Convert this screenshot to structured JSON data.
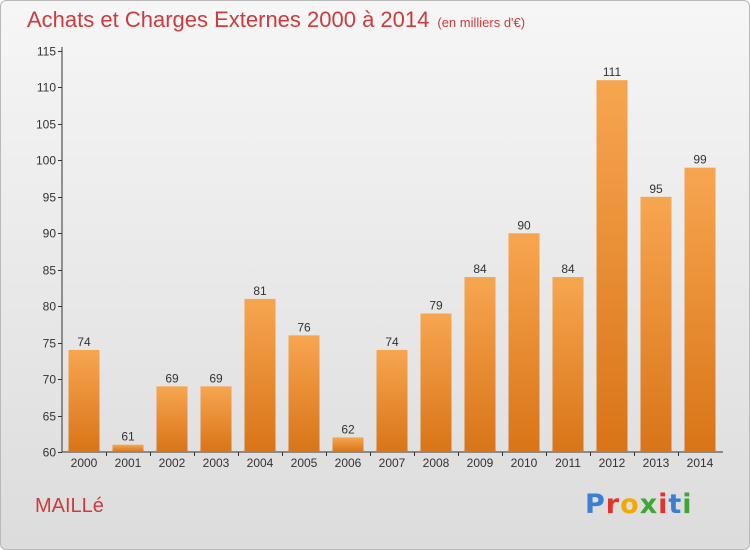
{
  "title": "Achats et Charges Externes 2000 à 2014",
  "unit": "(en milliers d'€)",
  "town": "MAILLé",
  "logo": "Proxiti",
  "colors": {
    "bar_light": "#f7a650",
    "bar_dark": "#d97418",
    "title": "#cc3b3e"
  },
  "chart_data": {
    "type": "bar",
    "title": "Achats et Charges Externes 2000 à 2014",
    "subtitle": "(en milliers d'€)",
    "xlabel": "",
    "ylabel": "",
    "ylim": [
      60,
      115
    ],
    "yticks": [
      60,
      65,
      70,
      75,
      80,
      85,
      90,
      95,
      100,
      105,
      110,
      115
    ],
    "grid": false,
    "categories": [
      "2000",
      "2001",
      "2002",
      "2003",
      "2004",
      "2005",
      "2006",
      "2007",
      "2008",
      "2009",
      "2010",
      "2011",
      "2012",
      "2013",
      "2014"
    ],
    "values": [
      74,
      61,
      69,
      69,
      81,
      76,
      62,
      74,
      79,
      84,
      90,
      84,
      111,
      95,
      99
    ]
  }
}
